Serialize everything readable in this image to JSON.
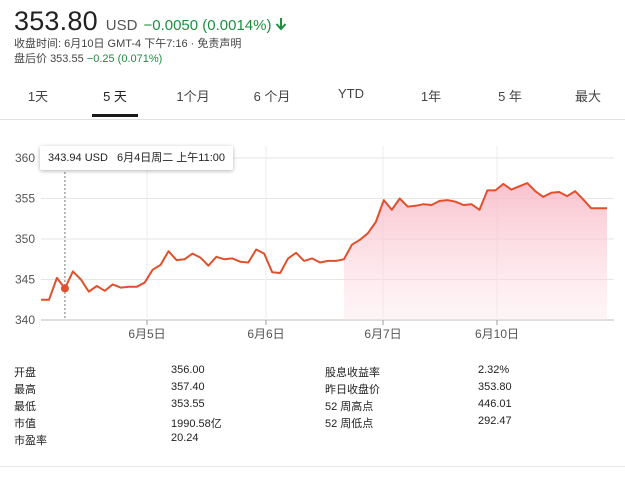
{
  "quote": {
    "price": "353.80",
    "currency": "USD",
    "change": "−0.0050 (0.0014%)",
    "close_time": "收盘时间: 6月10日 GMT-4 下午7:16 · 免责声明",
    "after_hours_label": "盘后价",
    "after_hours_price": "353.55",
    "after_hours_change": "−0.25 (0.071%)",
    "change_color": "#1e8e3e",
    "arrow_icon": "arrow-down-icon"
  },
  "tabs": [
    {
      "label": "1天",
      "active": false
    },
    {
      "label": "5 天",
      "active": true
    },
    {
      "label": "1个月",
      "active": false
    },
    {
      "label": "6 个月",
      "active": false
    },
    {
      "label": "YTD",
      "active": false
    },
    {
      "label": "1年",
      "active": false
    },
    {
      "label": "5 年",
      "active": false
    },
    {
      "label": "最大",
      "active": false
    }
  ],
  "tooltip": {
    "price": "343.94 USD",
    "time": "6月4日周二 上午11:00"
  },
  "chart_data": {
    "type": "area",
    "ylim": [
      340,
      360
    ],
    "y_ticks": [
      "360",
      "355",
      "350",
      "345",
      "340"
    ],
    "x_ticks": [
      "6月5日",
      "6月6日",
      "6月7日",
      "6月10日"
    ],
    "line_color": "#e0502d",
    "fill_color": "#fbd0da",
    "grid": true,
    "x": [
      0,
      1,
      2,
      3,
      4,
      5,
      6,
      7,
      8,
      9,
      10,
      11,
      12,
      13,
      14,
      15,
      16,
      17,
      18,
      19,
      20,
      21,
      22,
      23,
      24,
      25,
      26,
      27,
      28,
      29,
      30,
      31,
      32,
      33,
      34,
      35,
      36,
      37,
      38,
      39,
      40,
      41,
      42,
      43,
      44,
      45,
      46,
      47,
      48,
      49,
      50,
      51,
      52,
      53,
      54,
      55,
      56,
      57,
      58,
      59,
      60,
      61,
      62,
      63,
      64,
      65,
      66,
      67,
      68,
      69,
      70,
      71
    ],
    "values": [
      342.5,
      342.5,
      345.2,
      343.9,
      346.0,
      345.0,
      343.5,
      344.2,
      343.6,
      344.4,
      344.0,
      344.1,
      344.1,
      344.6,
      346.2,
      346.8,
      348.5,
      347.4,
      347.5,
      348.2,
      347.7,
      346.7,
      347.8,
      347.5,
      347.6,
      347.2,
      347.1,
      348.7,
      348.2,
      345.9,
      345.8,
      347.6,
      348.3,
      347.3,
      347.6,
      347.1,
      347.3,
      347.3,
      347.5,
      349.3,
      349.9,
      350.7,
      352.1,
      354.8,
      353.6,
      355.0,
      354.0,
      354.1,
      354.3,
      354.2,
      354.7,
      354.8,
      354.6,
      354.2,
      354.3,
      353.6,
      356.0,
      356.0,
      356.8,
      356.1,
      356.5,
      356.9,
      355.9,
      355.2,
      355.7,
      355.8,
      355.3,
      355.9,
      354.9,
      353.8,
      353.8,
      353.8
    ],
    "hover_index": 3
  },
  "stats": {
    "left": [
      {
        "label": "开盘",
        "value": "356.00"
      },
      {
        "label": "最高",
        "value": "357.40"
      },
      {
        "label": "最低",
        "value": "353.55"
      },
      {
        "label": "市值",
        "value": "1990.58亿"
      },
      {
        "label": "市盈率",
        "value": "20.24"
      }
    ],
    "right": [
      {
        "label": "股息收益率",
        "value": "2.32%"
      },
      {
        "label": "昨日收盘价",
        "value": "353.80"
      },
      {
        "label": "52 周高点",
        "value": "446.01"
      },
      {
        "label": "52 周低点",
        "value": "292.47"
      }
    ]
  }
}
